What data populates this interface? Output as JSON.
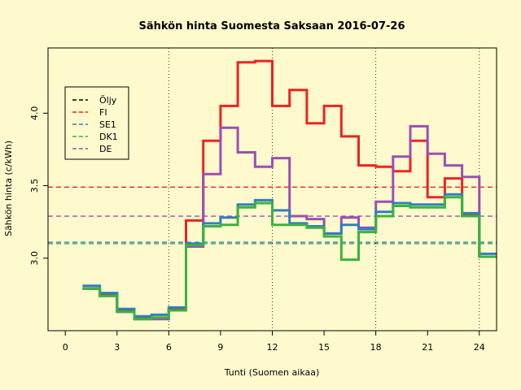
{
  "chart_data": {
    "type": "line",
    "title": "Sähkön hinta Suomesta Saksaan 2016-07-26",
    "xlabel": "Tunti (Suomen aikaa)",
    "ylabel": "Sähkön hinta (c/kWh)",
    "xlim": [
      -1,
      25
    ],
    "ylim": [
      2.5,
      4.45
    ],
    "x_ticks": [
      0,
      3,
      6,
      9,
      12,
      15,
      18,
      21,
      24
    ],
    "x_tick_labels": [
      "0",
      "3",
      "6",
      "9",
      "12",
      "15",
      "18",
      "21",
      "24"
    ],
    "y_ticks": [
      3.0,
      3.5,
      4.0
    ],
    "y_tick_labels": [
      "3.0",
      "3.5",
      "4.0"
    ],
    "vertical_lines": [
      6,
      12,
      18,
      24
    ],
    "step_x": [
      1,
      2,
      3,
      4,
      5,
      6,
      7,
      8,
      9,
      10,
      11,
      12,
      13,
      14,
      15,
      16,
      17,
      18,
      19,
      20,
      21,
      22,
      23,
      24,
      25
    ],
    "series": [
      {
        "name": "Öljy",
        "color": "#000000",
        "step_values": [],
        "hline": null
      },
      {
        "name": "FI",
        "color": "#ee2222",
        "step_values": [
          2.79,
          2.75,
          2.64,
          2.59,
          2.59,
          2.65,
          3.26,
          3.81,
          4.05,
          4.35,
          4.36,
          4.05,
          4.16,
          3.93,
          4.05,
          3.84,
          3.64,
          3.63,
          3.6,
          3.81,
          3.42,
          3.55,
          3.3,
          3.01
        ],
        "hline": 3.49
      },
      {
        "name": "SE1",
        "color": "#2f7fc1",
        "step_values": [
          2.81,
          2.76,
          2.65,
          2.6,
          2.61,
          2.66,
          3.1,
          3.24,
          3.28,
          3.37,
          3.4,
          3.33,
          3.24,
          3.22,
          3.17,
          3.23,
          3.2,
          3.32,
          3.38,
          3.37,
          3.37,
          3.44,
          3.31,
          3.03
        ],
        "hline": 3.11
      },
      {
        "name": "DK1",
        "color": "#3bb33b",
        "step_values": [
          2.79,
          2.74,
          2.63,
          2.58,
          2.59,
          2.64,
          3.09,
          3.22,
          3.23,
          3.35,
          3.38,
          3.23,
          3.23,
          3.21,
          3.15,
          2.99,
          3.18,
          3.29,
          3.36,
          3.35,
          3.35,
          3.42,
          3.29,
          3.01
        ],
        "hline": 3.1
      },
      {
        "name": "DE",
        "color": "#9b4fb5",
        "step_values": [
          2.79,
          2.74,
          2.63,
          2.58,
          2.58,
          2.64,
          3.08,
          3.58,
          3.9,
          3.73,
          3.63,
          3.69,
          3.29,
          3.27,
          3.17,
          3.28,
          3.21,
          3.39,
          3.7,
          3.91,
          3.72,
          3.64,
          3.56,
          3.01
        ],
        "hline": 3.29
      }
    ],
    "legend_position": "top-left",
    "grid": false
  }
}
